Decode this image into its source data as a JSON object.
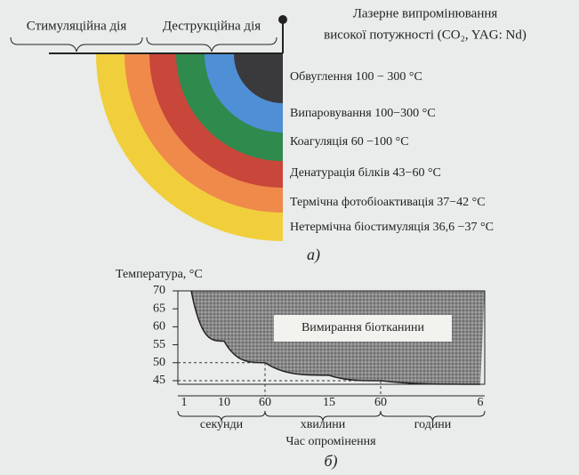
{
  "diagram": {
    "header": {
      "left": "Стимуляційна дія",
      "middle": "Деструкційна дія",
      "right_line1": "Лазерне випромінювання",
      "right_line2": "високої потужності (CO₂, YAG: Nd)"
    },
    "layers": [
      {
        "label": "Обвуглення 100 − 300 °C",
        "color": "#3a3a3c"
      },
      {
        "label": "Випаровування 100−300 °C",
        "color": "#4f8fd6"
      },
      {
        "label": "Коагуляція 60 −100 °C",
        "color": "#2f8a4e"
      },
      {
        "label": "Денатурація білків 43−60 °C",
        "color": "#c9463a"
      },
      {
        "label": "Термічна фотобіоактивація 37−42 °C",
        "color": "#ef8a4a"
      },
      {
        "label": "Нетермічна біостимуляція 36,6 −37 °C",
        "color": "#f1cf3c"
      }
    ],
    "caption": "а)"
  },
  "chart_data": {
    "type": "area",
    "y_label": "Температура, °C",
    "x_label": "Час опромінення",
    "annotation": "Вимирання біотканини",
    "caption": "б)",
    "categories": [
      "1",
      "10",
      "60",
      "15",
      "60",
      "6"
    ],
    "values": [
      70,
      56,
      50,
      46.5,
      45,
      44
    ],
    "x_groups": [
      "секунди",
      "хвилини",
      "години"
    ],
    "color": "#6e6e6e",
    "ylim": [
      44,
      70
    ],
    "yticks": [
      45,
      50,
      55,
      60,
      65,
      70
    ]
  }
}
